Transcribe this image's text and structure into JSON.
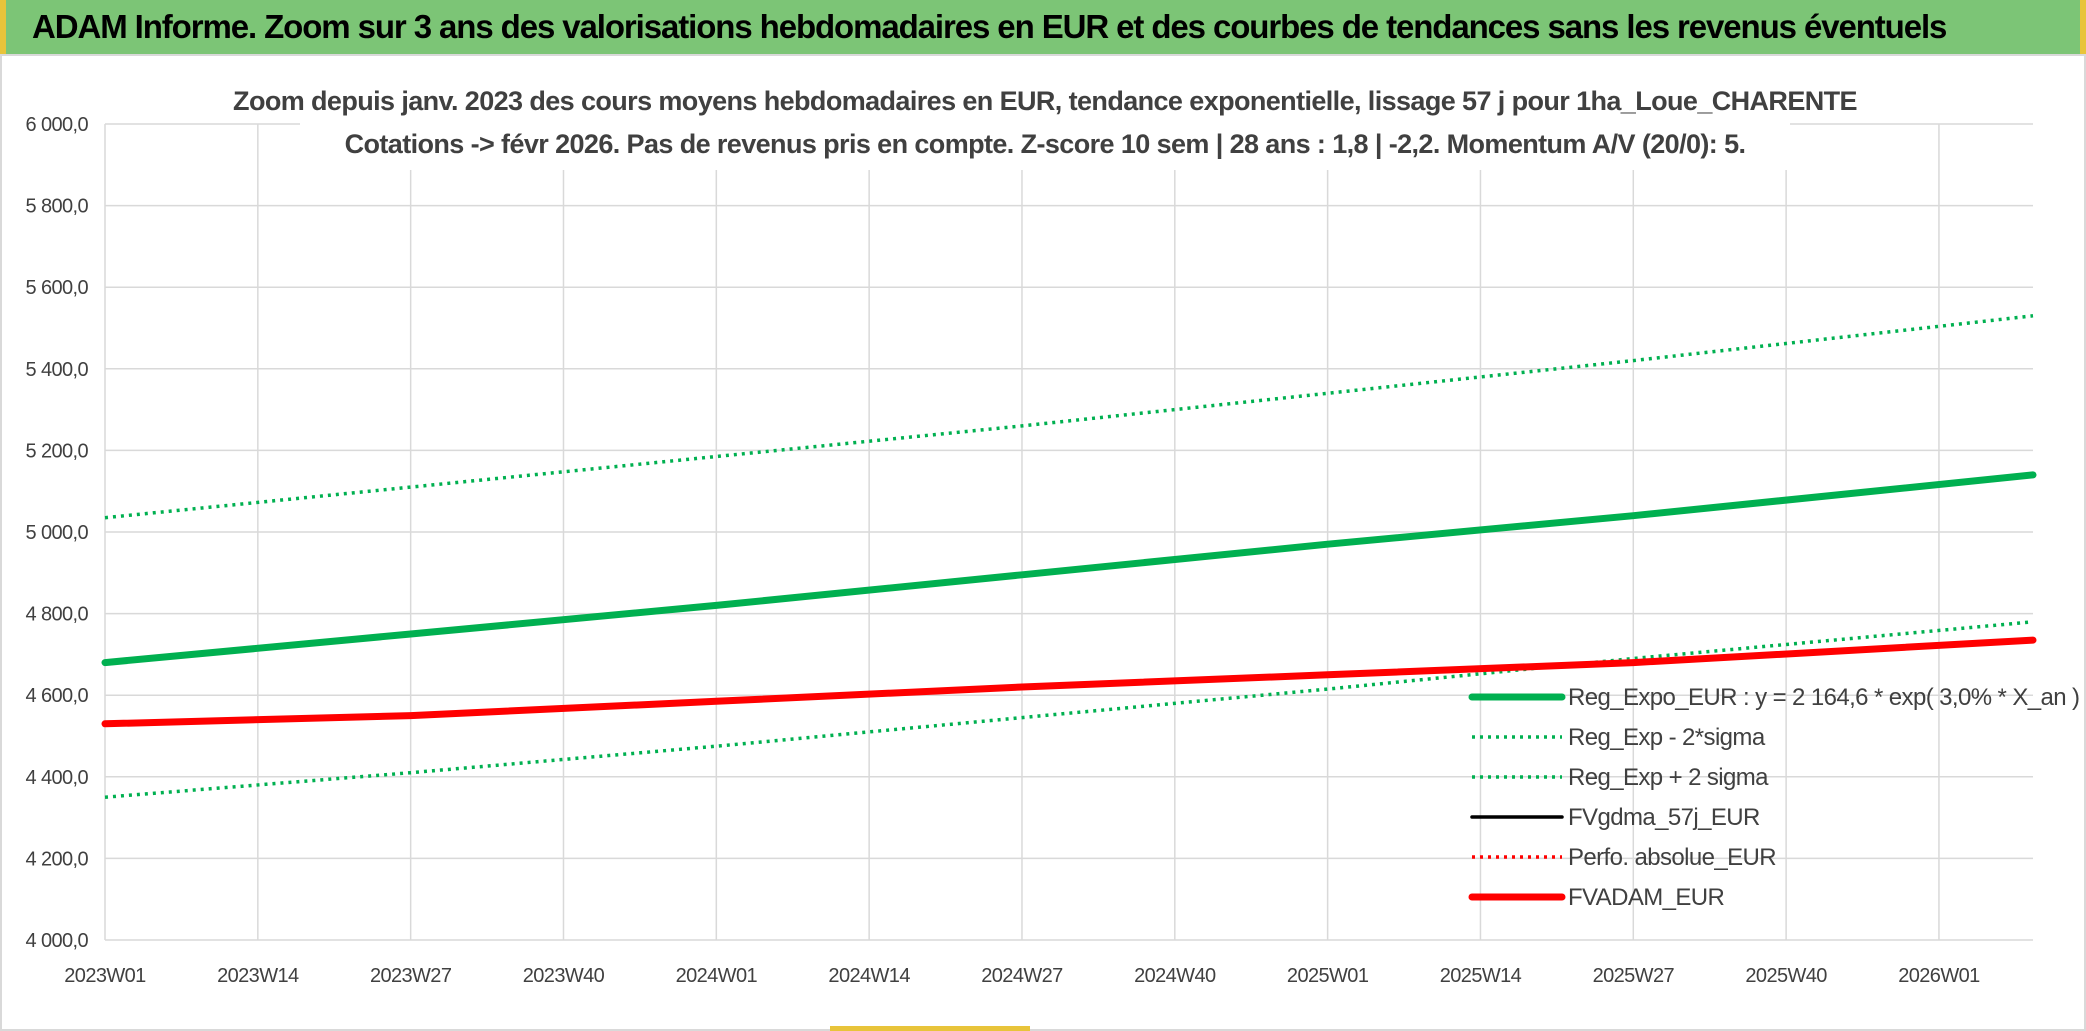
{
  "header": {
    "title": "ADAM Informe. Zoom sur 3 ans des valorisations hebdomadaires en EUR et des courbes de tendances sans les revenus éventuels"
  },
  "colors": {
    "header_bg": "#7cc576",
    "accent_yellow": "#e8c43a",
    "green": "#00b050",
    "red": "#ff0000",
    "black": "#000000"
  },
  "chart_data": {
    "type": "line",
    "title_lines": [
      "Zoom depuis janv. 2023 des cours moyens hebdomadaires en EUR, tendance exponentielle, lissage 57 j pour 1ha_Loue_CHARENTE",
      "Cotations -> févr 2026. Pas de revenus pris en compte. Z-score 10 sem | 28 ans : 1,8 | -2,2. Momentum A/V (20/0): 5."
    ],
    "xlabel": "",
    "ylabel": "",
    "ylim": [
      4000,
      6000
    ],
    "y_ticks": [
      4000,
      4200,
      4400,
      4600,
      4800,
      5000,
      5200,
      5400,
      5600,
      5800,
      6000
    ],
    "y_tick_labels": [
      "4 000,0",
      "4 200,0",
      "4 400,0",
      "4 600,0",
      "4 800,0",
      "5 000,0",
      "5 200,0",
      "5 400,0",
      "5 600,0",
      "5 800,0",
      "6 000,0"
    ],
    "x_ticks": [
      0,
      13,
      26,
      39,
      52,
      65,
      78,
      91,
      104,
      117,
      130,
      143,
      156
    ],
    "x_tick_labels": [
      "2023W01",
      "2023W14",
      "2023W27",
      "2023W40",
      "2024W01",
      "2024W14",
      "2024W27",
      "2024W40",
      "2025W01",
      "2025W14",
      "2025W27",
      "2025W40",
      "2026W01"
    ],
    "x_range": [
      0,
      164
    ],
    "grid": true,
    "legend_position": "bottom-right",
    "series": [
      {
        "name": "Reg_Expo_EUR : y = 2 164,6 * exp( 3,0% *  X_an )",
        "style": "solid-thick",
        "color": "#00b050",
        "x": [
          0,
          26,
          52,
          78,
          104,
          130,
          164
        ],
        "y": [
          4680,
          4750,
          4820,
          4895,
          4970,
          5040,
          5140
        ]
      },
      {
        "name": "Reg_Exp - 2*sigma",
        "style": "dotted",
        "color": "#00b050",
        "x": [
          0,
          26,
          52,
          78,
          104,
          130,
          164
        ],
        "y": [
          4350,
          4410,
          4475,
          4545,
          4615,
          4690,
          4780
        ]
      },
      {
        "name": "Reg_Exp + 2 sigma",
        "style": "dotted",
        "color": "#00b050",
        "x": [
          0,
          26,
          52,
          78,
          104,
          130,
          164
        ],
        "y": [
          5035,
          5110,
          5185,
          5260,
          5340,
          5420,
          5530
        ]
      },
      {
        "name": "FVgdma_57j_EUR",
        "style": "solid",
        "color": "#000000",
        "x": [],
        "y": []
      },
      {
        "name": "Perfo. absolue_EUR",
        "style": "dotted",
        "color": "#ff0000",
        "x": [],
        "y": []
      },
      {
        "name": "FVADAM_EUR",
        "style": "solid-thick",
        "color": "#ff0000",
        "x": [
          0,
          26,
          52,
          78,
          104,
          130,
          164
        ],
        "y": [
          4530,
          4550,
          4585,
          4620,
          4650,
          4680,
          4735
        ]
      }
    ]
  }
}
